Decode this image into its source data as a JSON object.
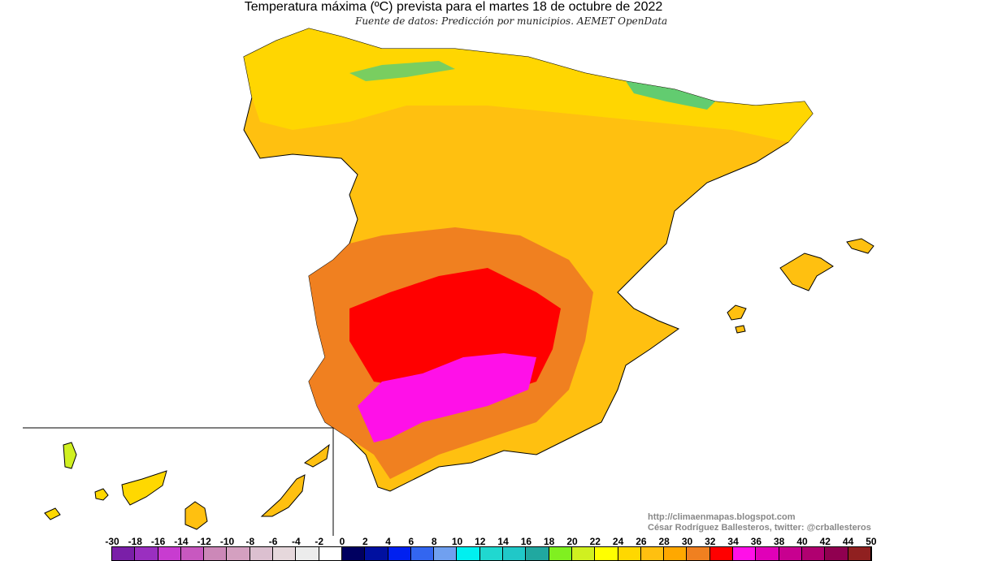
{
  "title": "Temperatura máxima (ºC) prevista para el martes 18 de octubre de 2022",
  "subtitle": "Fuente de datos: Predicción por municipios. AEMET OpenData",
  "credits": {
    "url": "http://climaenmapas.blogspot.com",
    "author": "César Rodríguez Ballesteros, twitter: @crballesteros"
  },
  "legend": {
    "labels": [
      "-30",
      "-18",
      "-16",
      "-14",
      "-12",
      "-10",
      "-8",
      "-6",
      "-4",
      "-2",
      "0",
      "2",
      "4",
      "6",
      "8",
      "10",
      "12",
      "14",
      "16",
      "18",
      "20",
      "22",
      "24",
      "26",
      "28",
      "30",
      "32",
      "34",
      "36",
      "38",
      "40",
      "42",
      "44",
      "50"
    ],
    "colors": [
      "#7a1fa8",
      "#9a2fc0",
      "#c83cd0",
      "#c858c0",
      "#cc88b8",
      "#d4a0c0",
      "#dcc0d0",
      "#e6d8dc",
      "#ececec",
      "#ffffff",
      "#000060",
      "#0010a0",
      "#0020f0",
      "#3366f0",
      "#70a0f0",
      "#00f0f0",
      "#20d8d0",
      "#20c8c8",
      "#20a8a0",
      "#80f020",
      "#d0f020",
      "#ffff00",
      "#ffd800",
      "#ffc010",
      "#ffa800",
      "#f08020",
      "#ff0000",
      "#ff10e8",
      "#e000b8",
      "#c80090",
      "#b00070",
      "#900050",
      "#902020"
    ]
  }
}
